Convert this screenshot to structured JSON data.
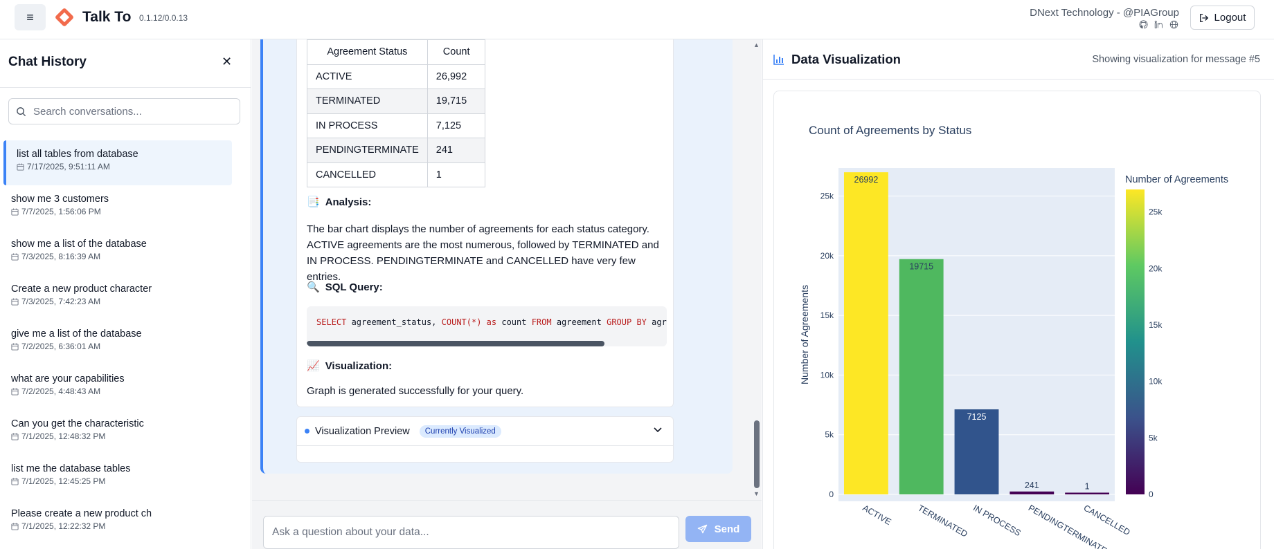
{
  "header": {
    "menu_icon": "hamburger-menu-icon",
    "app_title": "Talk To",
    "version": "0.1.12/0.0.13",
    "company": "DNext Technology - @PIAGroup",
    "logout_label": "Logout",
    "accent": "#f26b4c"
  },
  "sidebar": {
    "title": "Chat History",
    "search_placeholder": "Search conversations...",
    "items": [
      {
        "title": "list all tables from database",
        "date": "7/17/2025, 9:51:11 AM",
        "active": true
      },
      {
        "title": "show me 3 customers",
        "date": "7/7/2025, 1:56:06 PM"
      },
      {
        "title": "show me a list of the database",
        "date": "7/3/2025, 8:16:39 AM"
      },
      {
        "title": "Create a new product character",
        "date": "7/3/2025, 7:42:23 AM"
      },
      {
        "title": "give me a list of the database",
        "date": "7/2/2025, 6:36:01 AM"
      },
      {
        "title": "what are your capabilities",
        "date": "7/2/2025, 4:48:43 AM"
      },
      {
        "title": "Can you get the characteristic",
        "date": "7/1/2025, 12:48:32 PM"
      },
      {
        "title": "list me the database tables",
        "date": "7/1/2025, 12:45:25 PM"
      },
      {
        "title": "Please create a new product ch",
        "date": "7/1/2025, 12:22:32 PM"
      }
    ]
  },
  "chat": {
    "table": {
      "headers": [
        "Agreement Status",
        "Count"
      ],
      "rows": [
        [
          "ACTIVE",
          "26,992"
        ],
        [
          "TERMINATED",
          "19,715"
        ],
        [
          "IN PROCESS",
          "7,125"
        ],
        [
          "PENDINGTERMINATE",
          "241"
        ],
        [
          "CANCELLED",
          "1"
        ]
      ]
    },
    "analysis_heading": "Analysis:",
    "analysis_text": "The bar chart displays the number of agreements for each status category. ACTIVE agreements are the most numerous, followed by TERMINATED and IN PROCESS. PENDINGTERMINATE and CANCELLED have very few entries.",
    "sql_heading": "SQL Query:",
    "sql": {
      "kw1": "SELECT",
      "t1": " agreement_status, ",
      "kw2": "COUNT(*)",
      "t2": " ",
      "kw3": "as",
      "t3": " count ",
      "kw4": "FROM",
      "t4": " agreement ",
      "kw5": "GROUP BY",
      "t5": " agreement_status"
    },
    "viz_heading": "Visualization:",
    "viz_text": "Graph is generated successfully for your query.",
    "preview_label": "Visualization Preview",
    "preview_badge": "Currently Visualized",
    "input_placeholder": "Ask a question about your data...",
    "send_label": "Send"
  },
  "viz_panel": {
    "title": "Data Visualization",
    "subtitle": "Showing visualization for message #5"
  },
  "chart_data": {
    "type": "bar",
    "title": "Count of Agreements by Status",
    "xlabel": "",
    "ylabel": "Number of Agreements",
    "categories": [
      "ACTIVE",
      "TERMINATED",
      "IN PROCESS",
      "PENDINGTERMINATE",
      "CANCELLED"
    ],
    "values": [
      26992,
      19715,
      7125,
      241,
      1
    ],
    "colors": [
      "#fde725",
      "#4fb85f",
      "#31548c",
      "#440154",
      "#440154"
    ],
    "ylim": [
      0,
      27000
    ],
    "yticks": [
      0,
      5000,
      10000,
      15000,
      20000,
      25000
    ],
    "ytick_labels": [
      "0",
      "5k",
      "10k",
      "15k",
      "20k",
      "25k"
    ],
    "colorbar": {
      "title": "Number of Agreements",
      "ticks": [
        0,
        5000,
        10000,
        15000,
        20000,
        25000
      ],
      "tick_labels": [
        "0",
        "5k",
        "10k",
        "15k",
        "20k",
        "25k"
      ]
    },
    "plot_bg": "#e5ecf6"
  }
}
